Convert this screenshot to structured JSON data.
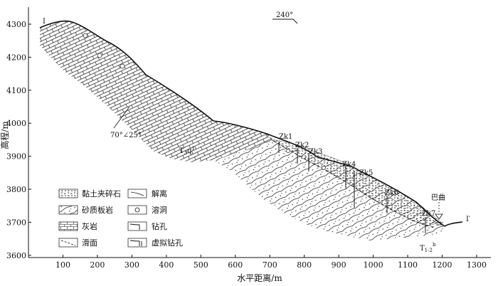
{
  "profile": {
    "start_label": "I",
    "end_label": "I′",
    "direction_label": "240°",
    "occurrence_label": "70°∠25°",
    "unit_label_left": "T",
    "unit_label_left_sub": "3",
    "unit_label_left_after": "q",
    "unit_label_left_sup": "1",
    "unit_label_right": "T",
    "unit_label_right_sub": "1-2",
    "unit_label_right_sup": "b",
    "river_label": "巴曲"
  },
  "axes": {
    "x_title": "水平距离/m",
    "y_title": "高程/m",
    "x_ticks": [
      "100",
      "200",
      "300",
      "400",
      "500",
      "600",
      "700",
      "800",
      "900",
      "1000",
      "1100",
      "1200",
      "1300"
    ],
    "y_ticks": [
      "4300",
      "4200",
      "4100",
      "4000",
      "3900",
      "3800",
      "3700",
      "3600"
    ]
  },
  "boreholes": [
    {
      "id": "Zk1"
    },
    {
      "id": "Zk2"
    },
    {
      "id": "Zk3"
    },
    {
      "id": "Zk4"
    },
    {
      "id": "Zk5"
    },
    {
      "id": "Zk6"
    },
    {
      "id": "Zk7"
    }
  ],
  "legend": [
    {
      "icon": "gravel-clay-icon",
      "label": "黏土夹碎石"
    },
    {
      "icon": "sandy-slate-icon",
      "label": "砂质板岩"
    },
    {
      "icon": "limestone-icon",
      "label": "灰岩"
    },
    {
      "icon": "slip-surface-icon",
      "label": "滑面"
    },
    {
      "icon": "joint-icon",
      "label": "解离"
    },
    {
      "icon": "karst-cave-icon",
      "label": "溶洞"
    },
    {
      "icon": "borehole-icon",
      "label": "钻孔"
    },
    {
      "icon": "virtual-borehole-icon",
      "label": "虚拟钻孔"
    }
  ],
  "colors": {
    "ink": "#111111",
    "background": "#ffffff"
  }
}
